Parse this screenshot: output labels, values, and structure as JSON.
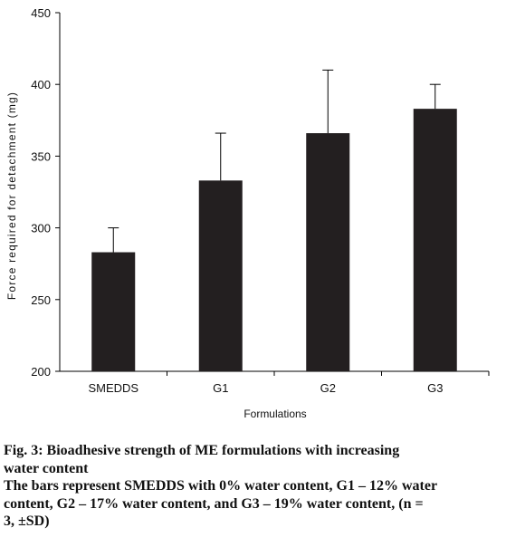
{
  "chart_data": {
    "type": "bar",
    "categories": [
      "SMEDDS",
      "G1",
      "G2",
      "G3"
    ],
    "values": [
      283,
      333,
      366,
      383
    ],
    "error": [
      17,
      33,
      44,
      17
    ],
    "xlabel": "Formulations",
    "ylabel": "Force required for detachment (mg)",
    "ylim": [
      200,
      450
    ],
    "yticks": [
      200,
      250,
      300,
      350,
      400,
      450
    ],
    "bar_color": "#231f20",
    "grid": false
  },
  "caption": {
    "title_line1": "Fig. 3: Bioadhesive strength of ME formulations with increasing",
    "title_line2": "water content",
    "desc_line1": "The bars represent SMEDDS with 0% water content, G1 – 12% water",
    "desc_line2": "content, G2 – 17% water content, and G3 – 19% water content, (n =",
    "desc_line3": "3, ±SD)"
  }
}
